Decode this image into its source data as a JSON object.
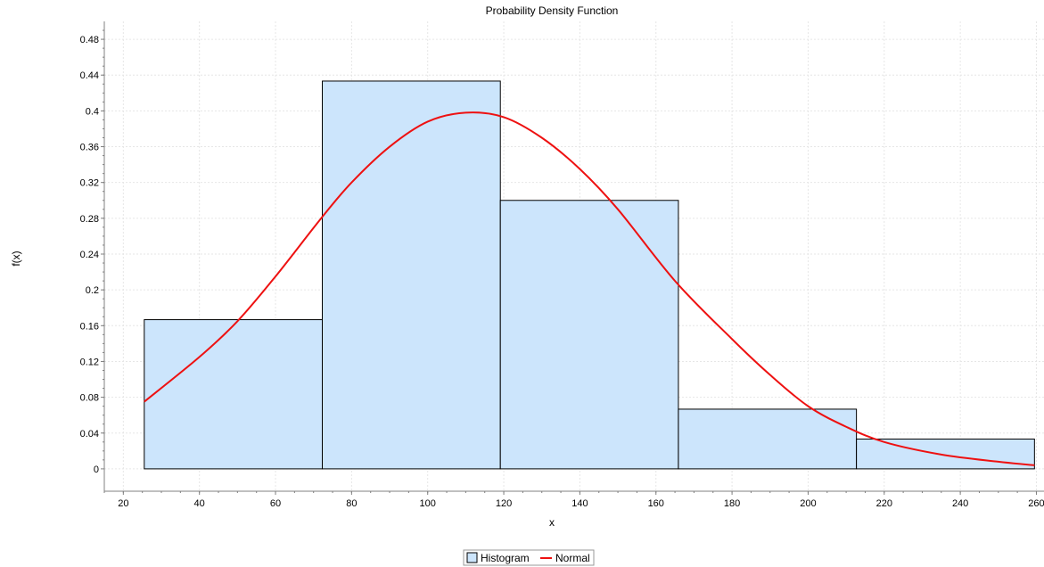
{
  "chart_data": {
    "type": "bar",
    "title": "Probability Density Function",
    "xlabel": "x",
    "ylabel": "f(x)",
    "xlim": [
      15,
      262
    ],
    "ylim": [
      -0.025,
      0.5
    ],
    "grid": true,
    "legend_position": "bottom-center",
    "x_ticks": [
      "20",
      "40",
      "60",
      "80",
      "100",
      "120",
      "140",
      "160",
      "180",
      "200",
      "220",
      "240",
      "260"
    ],
    "y_ticks": [
      "0",
      "0.04",
      "0.08",
      "0.12",
      "0.16",
      "0.2",
      "0.24",
      "0.28",
      "0.32",
      "0.36",
      "0.4",
      "0.44",
      "0.48"
    ],
    "series": [
      {
        "name": "Histogram",
        "kind": "histogram",
        "bins": [
          {
            "x0": 25.5,
            "x1": 72.3,
            "value": 0.1667
          },
          {
            "x0": 72.3,
            "x1": 119.1,
            "value": 0.4333
          },
          {
            "x0": 119.1,
            "x1": 165.9,
            "value": 0.3
          },
          {
            "x0": 165.9,
            "x1": 212.7,
            "value": 0.0667
          },
          {
            "x0": 212.7,
            "x1": 259.5,
            "value": 0.0333
          }
        ],
        "fill": "#cce5fc",
        "stroke": "#000000"
      },
      {
        "name": "Normal",
        "kind": "line",
        "x": [
          25.5,
          40,
          50,
          60,
          72,
          80,
          90,
          100,
          110,
          120,
          130,
          140,
          150,
          165,
          180,
          190,
          200,
          210,
          220,
          235,
          250,
          259.5
        ],
        "y": [
          0.075,
          0.125,
          0.165,
          0.215,
          0.28,
          0.32,
          0.36,
          0.388,
          0.398,
          0.393,
          0.37,
          0.335,
          0.29,
          0.21,
          0.145,
          0.105,
          0.07,
          0.047,
          0.03,
          0.016,
          0.008,
          0.004
        ],
        "color": "#ee1111"
      }
    ]
  }
}
